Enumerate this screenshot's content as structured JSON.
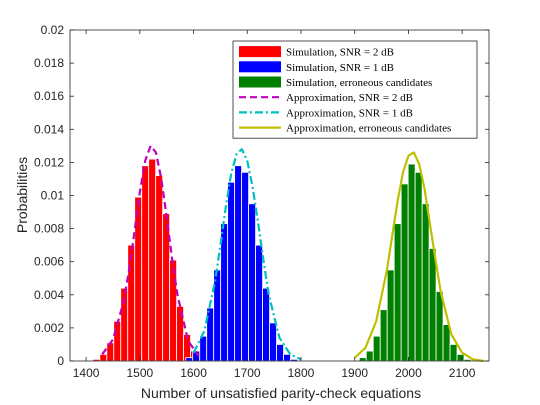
{
  "chart_data": {
    "type": "bar",
    "title": "",
    "xlabel": "Number of unsatisfied parity-check equations",
    "ylabel": "Probabilities",
    "xlim": [
      1370,
      2150
    ],
    "ylim": [
      0,
      0.02
    ],
    "xticks": [
      1400,
      1500,
      1600,
      1700,
      1800,
      1900,
      2000,
      2100
    ],
    "yticks": [
      0,
      0.002,
      0.004,
      0.006,
      0.008,
      0.01,
      0.012,
      0.014,
      0.016,
      0.018,
      0.02
    ],
    "bin_width": 13,
    "grid": false,
    "legend_position": "top-right",
    "legend": [
      {
        "label": "Simulation, SNR = 2 dB",
        "kind": "patch",
        "color": "#ff0000"
      },
      {
        "label": "Simulation, SNR = 1 dB",
        "kind": "patch",
        "color": "#0000ff"
      },
      {
        "label": "Simulation, erroneous candidates",
        "kind": "patch",
        "color": "#008000"
      },
      {
        "label": "Approximation, SNR = 2 dB",
        "kind": "line",
        "color": "#bf00bf",
        "dash": "dashed"
      },
      {
        "label": "Approximation, SNR = 1 dB",
        "kind": "line",
        "color": "#00bfbf",
        "dash": "dashdot"
      },
      {
        "label": "Approximation, erroneous candidates",
        "kind": "line",
        "color": "#bfbf00",
        "dash": "solid"
      }
    ],
    "series": [
      {
        "name": "Simulation, SNR = 2 dB",
        "kind": "histogram",
        "color": "#ff0000",
        "x": [
          1419,
          1432,
          1445,
          1458,
          1471,
          1484,
          1497,
          1510,
          1523,
          1536,
          1549,
          1562,
          1575,
          1588,
          1601,
          1614
        ],
        "values": [
          0.0001,
          0.0004,
          0.0011,
          0.0024,
          0.0044,
          0.007,
          0.0099,
          0.0118,
          0.0122,
          0.0112,
          0.0089,
          0.0061,
          0.0033,
          0.0016,
          0.0006,
          0.0002
        ]
      },
      {
        "name": "Simulation, SNR = 1 dB",
        "kind": "histogram",
        "color": "#0000ff",
        "x": [
          1592,
          1605,
          1618,
          1631,
          1644,
          1657,
          1670,
          1683,
          1696,
          1709,
          1722,
          1735,
          1748,
          1761,
          1774,
          1787
        ],
        "values": [
          0.0002,
          0.0006,
          0.0015,
          0.0032,
          0.0055,
          0.0083,
          0.0108,
          0.0118,
          0.0114,
          0.0095,
          0.007,
          0.0044,
          0.0023,
          0.001,
          0.0004,
          0.0001
        ]
      },
      {
        "name": "Simulation, erroneous candidates",
        "kind": "histogram",
        "color": "#008000",
        "x": [
          1915,
          1928,
          1941,
          1954,
          1967,
          1980,
          1993,
          2006,
          2019,
          2032,
          2045,
          2058,
          2071,
          2084,
          2097,
          2110
        ],
        "values": [
          0.0002,
          0.0006,
          0.0015,
          0.0031,
          0.0055,
          0.0083,
          0.0107,
          0.0119,
          0.0114,
          0.0095,
          0.0068,
          0.0042,
          0.0022,
          0.001,
          0.0004,
          0.0001
        ]
      },
      {
        "name": "Approximation, SNR = 2 dB",
        "kind": "line",
        "color": "#bf00bf",
        "dash": "dashed",
        "x": [
          1430,
          1450,
          1470,
          1480,
          1490,
          1500,
          1510,
          1520,
          1530,
          1540,
          1550,
          1560,
          1570,
          1590,
          1610
        ],
        "values": [
          0.0004,
          0.0013,
          0.0036,
          0.0055,
          0.0078,
          0.0102,
          0.0121,
          0.013,
          0.0126,
          0.011,
          0.0087,
          0.0062,
          0.004,
          0.0012,
          0.0003
        ]
      },
      {
        "name": "Approximation, SNR = 1 dB",
        "kind": "line",
        "color": "#00bfbf",
        "dash": "dashdot",
        "x": [
          1600,
          1620,
          1640,
          1650,
          1660,
          1670,
          1680,
          1690,
          1700,
          1710,
          1720,
          1730,
          1740,
          1760,
          1780,
          1800
        ],
        "values": [
          0.0005,
          0.0018,
          0.0048,
          0.007,
          0.0093,
          0.0113,
          0.0125,
          0.0128,
          0.0121,
          0.0105,
          0.0084,
          0.0061,
          0.004,
          0.0014,
          0.0004,
          0.0001
        ]
      },
      {
        "name": "Approximation, erroneous candidates",
        "kind": "line",
        "color": "#bfbf00",
        "dash": "solid",
        "x": [
          1900,
          1920,
          1940,
          1960,
          1970,
          1980,
          1990,
          2000,
          2010,
          2020,
          2030,
          2040,
          2050,
          2060,
          2080,
          2100,
          2120,
          2140
        ],
        "values": [
          0.0002,
          0.0008,
          0.0024,
          0.0055,
          0.0076,
          0.0097,
          0.0114,
          0.0124,
          0.0126,
          0.0119,
          0.0104,
          0.0083,
          0.0062,
          0.0042,
          0.0016,
          0.0005,
          0.0001,
          0.0
        ]
      }
    ]
  }
}
